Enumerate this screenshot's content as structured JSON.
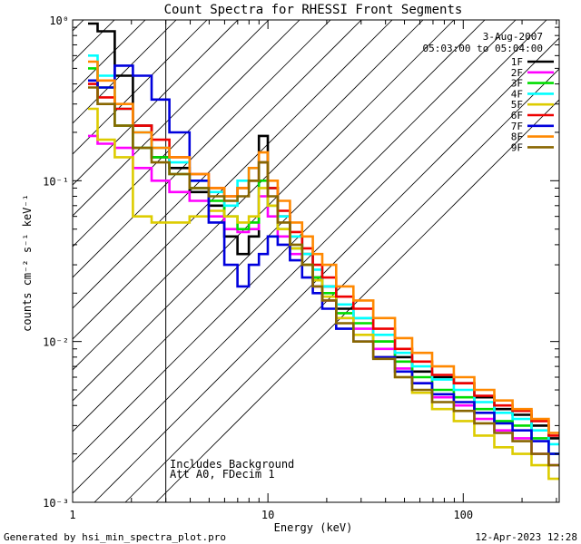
{
  "chart_data": {
    "type": "line",
    "title": "Count Spectra for RHESSI Front Segments",
    "xlabel": "Energy (keV)",
    "ylabel": "counts cm⁻² s⁻¹ keV⁻¹",
    "xscale": "log",
    "yscale": "log",
    "xlim": [
      1,
      310
    ],
    "ylim": [
      0.001,
      1.0
    ],
    "x_ticks": [
      {
        "value": 1,
        "label": "1"
      },
      {
        "value": 10,
        "label": "10"
      },
      {
        "value": 100,
        "label": "100"
      }
    ],
    "y_ticks": [
      {
        "value": 1,
        "label": "10⁰"
      },
      {
        "value": 0.1,
        "label": "10⁻¹"
      },
      {
        "value": 0.01,
        "label": "10⁻²"
      },
      {
        "value": 0.001,
        "label": "10⁻³"
      }
    ],
    "attenuator_shading": {
      "from_kev": 1,
      "to_kev": 3
    },
    "legend": {
      "placement": "top-right",
      "date": "3-Aug-2007",
      "time_range": "05:03:00 to 05:04:00"
    },
    "annotations": [
      "Includes Background",
      "Att A0, FDecim 1"
    ],
    "footer_left": "Generated by hsi_min_spectra_plot.pro",
    "footer_right": "12-Apr-2023 12:28",
    "series": [
      {
        "name": "1F",
        "color": "#000000",
        "x": [
          1.2,
          1.5,
          1.8,
          2.3,
          2.8,
          3.5,
          4.5,
          5.5,
          6.5,
          7.5,
          8.5,
          9.5,
          10.5,
          12,
          14,
          16,
          18,
          20,
          25,
          30,
          40,
          50,
          60,
          80,
          100,
          130,
          160,
          200,
          250,
          300
        ],
        "y": [
          0.95,
          0.85,
          0.45,
          0.22,
          0.14,
          0.12,
          0.085,
          0.07,
          0.045,
          0.035,
          0.045,
          0.19,
          0.09,
          0.06,
          0.045,
          0.035,
          0.025,
          0.022,
          0.016,
          0.014,
          0.01,
          0.008,
          0.0065,
          0.006,
          0.0055,
          0.0045,
          0.0038,
          0.0035,
          0.003,
          0.0025
        ]
      },
      {
        "name": "2F",
        "color": "#ff00ff",
        "x": [
          1.2,
          1.5,
          1.8,
          2.3,
          2.8,
          3.5,
          4.5,
          5.5,
          6.5,
          7.5,
          8.5,
          9.5,
          10.5,
          12,
          14,
          16,
          18,
          20,
          25,
          30,
          40,
          50,
          60,
          80,
          100,
          130,
          160,
          200,
          250,
          300
        ],
        "y": [
          0.19,
          0.17,
          0.16,
          0.12,
          0.1,
          0.085,
          0.075,
          0.06,
          0.05,
          0.048,
          0.05,
          0.08,
          0.06,
          0.045,
          0.035,
          0.03,
          0.022,
          0.018,
          0.014,
          0.012,
          0.009,
          0.0068,
          0.0055,
          0.0045,
          0.004,
          0.0033,
          0.0028,
          0.0025,
          0.002,
          0.0017
        ]
      },
      {
        "name": "3F",
        "color": "#00dd00",
        "x": [
          1.2,
          1.5,
          1.8,
          2.3,
          2.8,
          3.5,
          4.5,
          5.5,
          6.5,
          7.5,
          8.5,
          9.5,
          10.5,
          12,
          14,
          16,
          18,
          20,
          25,
          30,
          40,
          50,
          60,
          80,
          100,
          130,
          160,
          200,
          250,
          300
        ],
        "y": [
          0.5,
          0.38,
          0.22,
          0.16,
          0.14,
          0.11,
          0.09,
          0.075,
          0.06,
          0.05,
          0.055,
          0.1,
          0.07,
          0.05,
          0.038,
          0.03,
          0.025,
          0.02,
          0.015,
          0.013,
          0.01,
          0.0075,
          0.006,
          0.005,
          0.0045,
          0.0038,
          0.0032,
          0.003,
          0.0025,
          0.002
        ]
      },
      {
        "name": "4F",
        "color": "#00ffff",
        "x": [
          1.2,
          1.5,
          1.8,
          2.3,
          2.8,
          3.5,
          4.5,
          5.5,
          6.5,
          7.5,
          8.5,
          9.5,
          10.5,
          12,
          14,
          16,
          18,
          20,
          25,
          30,
          40,
          50,
          60,
          80,
          100,
          130,
          160,
          200,
          250,
          300
        ],
        "y": [
          0.6,
          0.45,
          0.28,
          0.2,
          0.16,
          0.13,
          0.1,
          0.085,
          0.07,
          0.1,
          0.12,
          0.13,
          0.09,
          0.06,
          0.045,
          0.035,
          0.028,
          0.022,
          0.017,
          0.014,
          0.011,
          0.0085,
          0.007,
          0.0058,
          0.005,
          0.0042,
          0.0036,
          0.0033,
          0.0028,
          0.0023
        ]
      },
      {
        "name": "5F",
        "color": "#ddcc00",
        "x": [
          1.2,
          1.5,
          1.8,
          2.3,
          2.8,
          3.5,
          4.5,
          5.5,
          6.5,
          7.5,
          8.5,
          9.5,
          10.5,
          12,
          14,
          16,
          18,
          20,
          25,
          30,
          40,
          50,
          60,
          80,
          100,
          130,
          160,
          200,
          250,
          300
        ],
        "y": [
          0.28,
          0.18,
          0.14,
          0.06,
          0.055,
          0.055,
          0.06,
          0.065,
          0.06,
          0.055,
          0.06,
          0.09,
          0.07,
          0.05,
          0.038,
          0.03,
          0.024,
          0.019,
          0.014,
          0.011,
          0.008,
          0.006,
          0.0048,
          0.0038,
          0.0032,
          0.0026,
          0.0022,
          0.002,
          0.0017,
          0.0014
        ]
      },
      {
        "name": "6F",
        "color": "#ee0000",
        "x": [
          1.2,
          1.5,
          1.8,
          2.3,
          2.8,
          3.5,
          4.5,
          5.5,
          6.5,
          7.5,
          8.5,
          9.5,
          10.5,
          12,
          14,
          16,
          18,
          20,
          25,
          30,
          40,
          50,
          60,
          80,
          100,
          130,
          160,
          200,
          250,
          300
        ],
        "y": [
          0.4,
          0.33,
          0.28,
          0.22,
          0.18,
          0.14,
          0.11,
          0.09,
          0.08,
          0.09,
          0.1,
          0.13,
          0.09,
          0.065,
          0.048,
          0.038,
          0.03,
          0.025,
          0.019,
          0.016,
          0.012,
          0.009,
          0.0075,
          0.0062,
          0.0055,
          0.0046,
          0.004,
          0.0037,
          0.0032,
          0.0026
        ]
      },
      {
        "name": "7F",
        "color": "#0000dd",
        "x": [
          1.2,
          1.5,
          1.8,
          2.3,
          2.8,
          3.5,
          4.5,
          5.5,
          6.5,
          7.5,
          8.5,
          9.5,
          10.5,
          12,
          14,
          16,
          18,
          20,
          25,
          30,
          40,
          50,
          60,
          80,
          100,
          130,
          160,
          200,
          250,
          300
        ],
        "y": [
          0.42,
          0.38,
          0.52,
          0.45,
          0.32,
          0.2,
          0.1,
          0.055,
          0.03,
          0.022,
          0.03,
          0.035,
          0.045,
          0.04,
          0.032,
          0.025,
          0.02,
          0.016,
          0.012,
          0.01,
          0.008,
          0.0065,
          0.0055,
          0.0047,
          0.0042,
          0.0036,
          0.0031,
          0.0028,
          0.0024,
          0.002
        ]
      },
      {
        "name": "8F",
        "color": "#ff8800",
        "x": [
          1.2,
          1.5,
          1.8,
          2.3,
          2.8,
          3.5,
          4.5,
          5.5,
          6.5,
          7.5,
          8.5,
          9.5,
          10.5,
          12,
          14,
          16,
          18,
          20,
          25,
          30,
          40,
          50,
          60,
          80,
          100,
          130,
          160,
          200,
          250,
          300
        ],
        "y": [
          0.55,
          0.42,
          0.3,
          0.2,
          0.16,
          0.14,
          0.11,
          0.09,
          0.08,
          0.09,
          0.12,
          0.15,
          0.1,
          0.075,
          0.055,
          0.045,
          0.035,
          0.03,
          0.022,
          0.018,
          0.014,
          0.0105,
          0.0085,
          0.007,
          0.006,
          0.005,
          0.0043,
          0.0038,
          0.0033,
          0.0027
        ]
      },
      {
        "name": "9F",
        "color": "#886600",
        "x": [
          1.2,
          1.5,
          1.8,
          2.3,
          2.8,
          3.5,
          4.5,
          5.5,
          6.5,
          7.5,
          8.5,
          9.5,
          10.5,
          12,
          14,
          16,
          18,
          20,
          25,
          30,
          40,
          50,
          60,
          80,
          100,
          130,
          160,
          200,
          250,
          300
        ],
        "y": [
          0.38,
          0.3,
          0.22,
          0.16,
          0.13,
          0.11,
          0.09,
          0.08,
          0.075,
          0.08,
          0.1,
          0.13,
          0.08,
          0.055,
          0.04,
          0.03,
          0.022,
          0.018,
          0.013,
          0.01,
          0.0078,
          0.006,
          0.005,
          0.0042,
          0.0037,
          0.0031,
          0.0027,
          0.0024,
          0.002,
          0.0017
        ]
      }
    ]
  }
}
